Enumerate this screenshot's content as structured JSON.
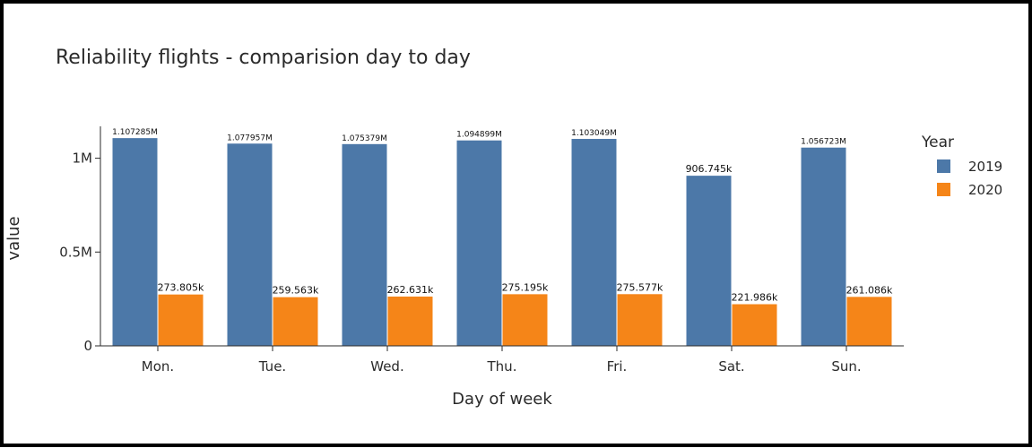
{
  "colors": {
    "2019": "#4c78a8",
    "2020": "#f58518"
  },
  "chart_data": {
    "type": "bar",
    "title": "Reliability flights - comparision day to day",
    "xlabel": "Day of week",
    "ylabel": "value",
    "categories": [
      "Mon.",
      "Tue.",
      "Wed.",
      "Thu.",
      "Fri.",
      "Sat.",
      "Sun."
    ],
    "ylim": [
      0,
      1170000
    ],
    "yticks": [
      {
        "value": 0,
        "label": "0"
      },
      {
        "value": 500000,
        "label": "0.5M"
      },
      {
        "value": 1000000,
        "label": "1M"
      }
    ],
    "grid": false,
    "legend": {
      "title": "Year",
      "placement": "right"
    },
    "series": [
      {
        "name": "2019",
        "values": [
          1107285,
          1077957,
          1075379,
          1094899,
          1103049,
          906745,
          1056723
        ],
        "labels": [
          "1.107285M",
          "1.077957M",
          "1.075379M",
          "1.094899M",
          "1.103049M",
          "906.745k",
          "1.056723M"
        ]
      },
      {
        "name": "2020",
        "values": [
          273805,
          259563,
          262631,
          275195,
          275577,
          221986,
          261086
        ],
        "labels": [
          "273.805k",
          "259.563k",
          "262.631k",
          "275.195k",
          "275.577k",
          "221.986k",
          "261.086k"
        ]
      }
    ]
  }
}
